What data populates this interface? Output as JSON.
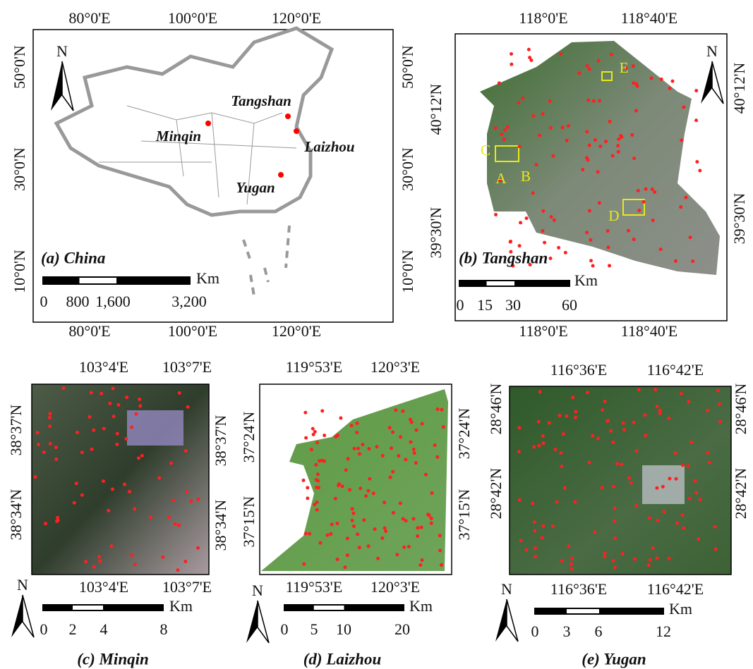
{
  "panels": [
    {
      "caption": "(a) China",
      "top_labels": [
        "80°0'E",
        "100°0'E",
        "120°0'E"
      ],
      "bottom_labels": [
        "80°0'E",
        "100°0'E",
        "120°0'E"
      ],
      "left_labels": [
        "50°0'N",
        "30°0'N",
        "10°0'N"
      ],
      "right_labels": [
        "50°0'N",
        "30°0'N",
        "10°0'N"
      ],
      "north": "N",
      "scale_unit": "Km",
      "scale_labels": [
        "0",
        "800",
        "1,600",
        "3,200"
      ],
      "place_labels": [
        "Tangshan",
        "Minqin",
        "Laizhou",
        "Yugan"
      ]
    },
    {
      "caption": "(b) Tangshan",
      "top_labels": [
        "118°0'E",
        "118°40'E"
      ],
      "bottom_labels": [
        "118°0'E",
        "118°40'E"
      ],
      "left_labels": [
        "40°12'N",
        "39°30'N"
      ],
      "right_labels": [
        "40°12'N",
        "39°30'N"
      ],
      "north": "N",
      "scale_unit": "Km",
      "scale_labels": [
        "0",
        "15",
        "30",
        "60"
      ],
      "place_labels": [
        "E",
        "C",
        "A",
        "B",
        "D"
      ]
    },
    {
      "caption": "(c) Minqin",
      "top_labels": [
        "103°4'E",
        "103°7'E"
      ],
      "bottom_labels": [
        "103°4'E",
        "103°7'E"
      ],
      "left_labels": [
        "38°37'N",
        "38°34'N"
      ],
      "right_labels": [
        "38°37'N",
        "38°34'N"
      ],
      "north": "N",
      "scale_unit": "Km",
      "scale_labels": [
        "0",
        "2",
        "4",
        "8"
      ],
      "place_labels": []
    },
    {
      "caption": "(d) Laizhou",
      "top_labels": [
        "119°53'E",
        "120°3'E"
      ],
      "bottom_labels": [
        "119°53'E",
        "120°3'E"
      ],
      "left_labels": [
        "37°24'N",
        "37°15'N"
      ],
      "right_labels": [
        "37°24'N",
        "37°15'N"
      ],
      "north": "N",
      "scale_unit": "Km",
      "scale_labels": [
        "0",
        "5",
        "10",
        "20"
      ],
      "place_labels": []
    },
    {
      "caption": "(e) Yugan",
      "top_labels": [
        "116°36'E",
        "116°42'E"
      ],
      "bottom_labels": [
        "116°36'E",
        "116°42'E"
      ],
      "left_labels": [
        "28°46'N",
        "28°42'N"
      ],
      "right_labels": [
        "28°46'N",
        "28°42'N"
      ],
      "north": "N",
      "scale_unit": "Km",
      "scale_labels": [
        "0",
        "3",
        "6",
        "12"
      ],
      "place_labels": []
    }
  ]
}
